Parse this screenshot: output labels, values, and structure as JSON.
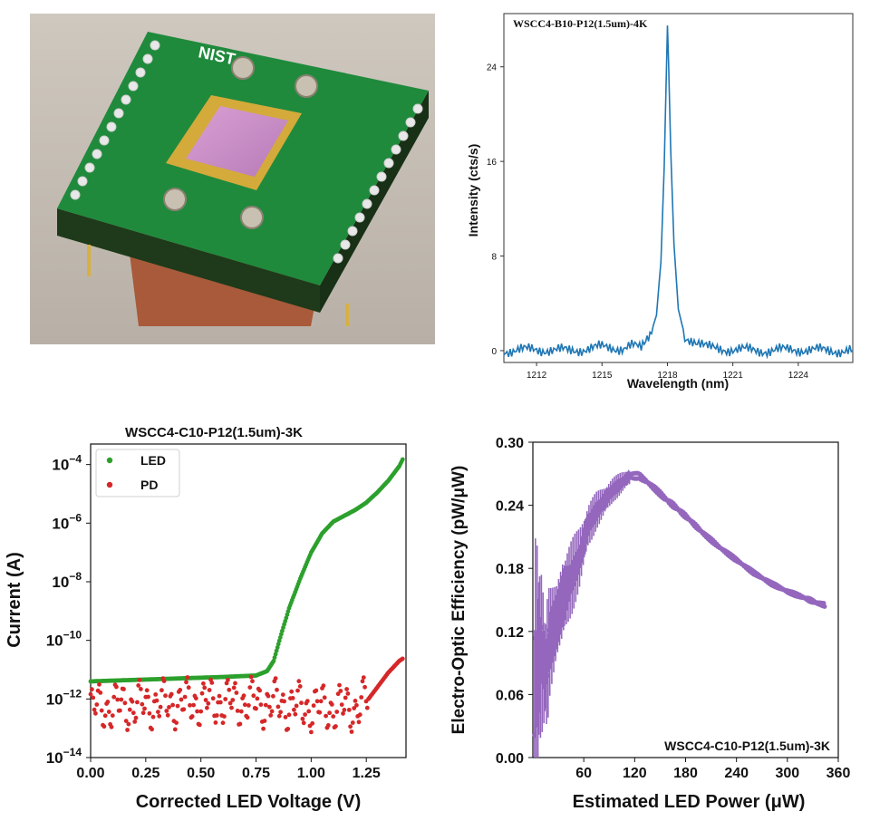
{
  "photo": {
    "board_label": "NIST",
    "icon": "circuit-board-photo"
  },
  "chart_data": [
    {
      "type": "line",
      "title": "WSCC4-B10-P12(1.5um)-4K",
      "xlabel": "Wavelength (nm)",
      "ylabel": "Intensity (cts/s)",
      "xlim": [
        1210.5,
        1226.5
      ],
      "ylim": [
        -1,
        28.5
      ],
      "xticks": [
        1212,
        1215,
        1218,
        1221,
        1224
      ],
      "yticks": [
        0,
        8,
        16,
        24
      ],
      "grid": false,
      "color": "#1f77b4",
      "series": [
        {
          "x": [
            1210.5,
            1212,
            1213.5,
            1215,
            1216,
            1216.8,
            1217.2,
            1217.5,
            1217.7,
            1217.85,
            1217.95,
            1218.0,
            1218.05,
            1218.15,
            1218.3,
            1218.5,
            1218.8,
            1219.3,
            1220,
            1221,
            1222.5,
            1224,
            1225.5,
            1226.5
          ],
          "y": [
            0.0,
            0.1,
            0.0,
            0.3,
            0.2,
            0.5,
            1.2,
            3.0,
            7.5,
            15.5,
            23.5,
            27.5,
            24.5,
            17.0,
            9.0,
            3.5,
            1.2,
            0.5,
            0.2,
            0.1,
            0.0,
            0.1,
            0.0,
            0.0
          ]
        }
      ]
    },
    {
      "type": "scatter",
      "title": "WSCC4-C10-P12(1.5um)-3K",
      "xlabel": "Corrected LED Voltage (V)",
      "ylabel": "Current (A)",
      "log_y": true,
      "xlim": [
        0.0,
        1.43
      ],
      "ylim_exponent": [
        -14,
        -3.3
      ],
      "xticks": [
        "0.00",
        "0.25",
        "0.50",
        "0.75",
        "1.00",
        "1.25"
      ],
      "yticks": [
        "−4",
        "−6",
        "−8",
        "−10",
        "−12",
        "−14"
      ],
      "ytick_base": "10",
      "legend": "top-left",
      "series": [
        {
          "name": "LED",
          "color": "#2ca02c",
          "x": [
            0.0,
            0.2,
            0.4,
            0.6,
            0.75,
            0.8,
            0.83,
            0.86,
            0.9,
            0.95,
            1.0,
            1.05,
            1.1,
            1.15,
            1.2,
            1.25,
            1.3,
            1.35,
            1.4,
            1.42
          ],
          "y_log10": [
            -11.4,
            -11.35,
            -11.3,
            -11.25,
            -11.2,
            -11.05,
            -10.7,
            -9.9,
            -8.9,
            -7.9,
            -7.0,
            -6.35,
            -5.95,
            -5.75,
            -5.55,
            -5.3,
            -4.95,
            -4.55,
            -4.05,
            -3.75
          ]
        },
        {
          "name": "PD",
          "color": "#d62728",
          "x": [
            0.0,
            0.25,
            0.5,
            0.75,
            1.0,
            1.2,
            1.26,
            1.3,
            1.35,
            1.4,
            1.42
          ],
          "y_log10": [
            -12.3,
            -12.2,
            -12.1,
            -12.1,
            -12.3,
            -12.3,
            -12.0,
            -11.6,
            -11.1,
            -10.7,
            -10.6
          ]
        }
      ]
    },
    {
      "type": "scatter",
      "title": "WSCC4-C10-P12(1.5um)-3K",
      "xlabel": "Estimated LED Power (μW)",
      "ylabel": "Electro-Optic Efficiency (pW/μW)",
      "xlim": [
        0,
        360
      ],
      "ylim": [
        0.0,
        0.3
      ],
      "xticks": [
        "60",
        "120",
        "180",
        "240",
        "300",
        "360"
      ],
      "yticks": [
        "0.00",
        "0.06",
        "0.12",
        "0.18",
        "0.24",
        "0.30"
      ],
      "error_bars": true,
      "color": "#9467bd",
      "series": [
        {
          "x": [
            2,
            6,
            10,
            15,
            20,
            28,
            35,
            45,
            55,
            65,
            75,
            85,
            95,
            105,
            115,
            125,
            135,
            145,
            155,
            170,
            185,
            200,
            220,
            240,
            260,
            280,
            300,
            320,
            335,
            345
          ],
          "y": [
            0.06,
            0.09,
            0.1,
            0.08,
            0.11,
            0.13,
            0.15,
            0.17,
            0.19,
            0.22,
            0.235,
            0.245,
            0.255,
            0.262,
            0.268,
            0.268,
            0.262,
            0.255,
            0.247,
            0.237,
            0.226,
            0.214,
            0.2,
            0.188,
            0.176,
            0.166,
            0.158,
            0.152,
            0.147,
            0.145
          ],
          "err": [
            0.1,
            0.08,
            0.05,
            0.04,
            0.04,
            0.03,
            0.03,
            0.025,
            0.02,
            0.015,
            0.012,
            0.01,
            0.008,
            0.007,
            0.006,
            0.005,
            0.005,
            0.004,
            0.004,
            0.004,
            0.003,
            0.003,
            0.003,
            0.003,
            0.003,
            0.003,
            0.003,
            0.003,
            0.003,
            0.003
          ]
        }
      ]
    }
  ]
}
